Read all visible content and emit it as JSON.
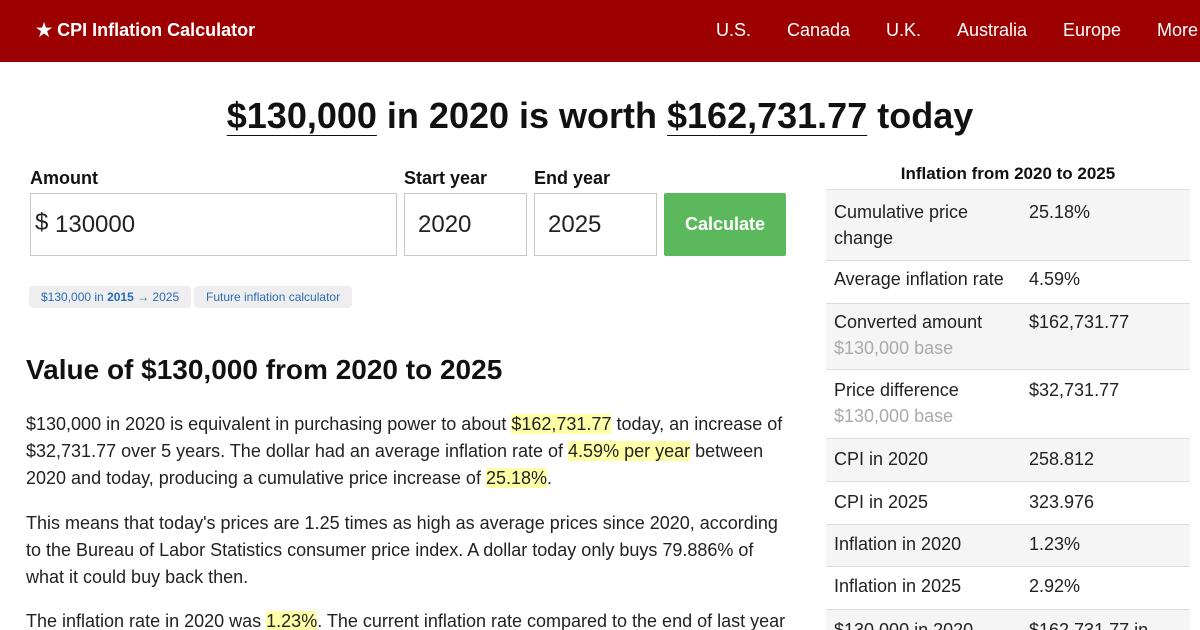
{
  "header": {
    "brand": "★ CPI Inflation Calculator",
    "nav": [
      "U.S.",
      "Canada",
      "U.K.",
      "Australia",
      "Europe",
      "More"
    ],
    "bg_color": "#9c0000"
  },
  "headline": {
    "amount": "$130,000",
    "mid": " in 2020 is worth ",
    "value": "$162,731.77",
    "end": " today"
  },
  "form": {
    "amount_label": "Amount",
    "currency_symbol": "$",
    "amount_value": "130000",
    "start_label": "Start year",
    "start_value": "2020",
    "end_label": "End year",
    "end_value": "2025",
    "calculate_label": "Calculate",
    "button_color": "#5cb85c"
  },
  "links": {
    "pill1_pre": "$130,000 in ",
    "pill1_year": "2015",
    "pill1_post": " → 2025",
    "pill2": "Future inflation calculator",
    "link_color": "#2a6db5"
  },
  "article": {
    "heading": "Value of $130,000 from 2020 to 2025",
    "p1": {
      "t1": "$130,000 in 2020 is equivalent in purchasing power to about ",
      "h1": "$162,731.77",
      "t2": " today, an increase of $32,731.77 over 5 years. The dollar had an average inflation rate of ",
      "h2": "4.59% per year",
      "t3": " between 2020 and today, producing a cumulative price increase of ",
      "h3": "25.18%",
      "t4": "."
    },
    "p2": "This means that today's prices are 1.25 times as high as average prices since 2020, according to the Bureau of Labor Statistics consumer price index. A dollar today only buys 79.886% of what it could buy back then.",
    "p3": {
      "t1": "The inflation rate in 2020 was ",
      "h1": "1.23%",
      "t2": ". The current inflation rate compared to the end of last year"
    },
    "highlight_color": "#ffffa8"
  },
  "sidebar": {
    "title": "Inflation from 2020 to 2025",
    "rows": [
      {
        "label": "Cumulative price change",
        "value": "25.18%",
        "sub": ""
      },
      {
        "label": "Average inflation rate",
        "value": "4.59%",
        "sub": ""
      },
      {
        "label": "Converted amount",
        "value": "$162,731.77",
        "sub": "$130,000 base"
      },
      {
        "label": "Price difference",
        "value": "$32,731.77",
        "sub": "$130,000 base"
      },
      {
        "label": "CPI in 2020",
        "value": "258.812",
        "sub": ""
      },
      {
        "label": "CPI in 2025",
        "value": "323.976",
        "sub": ""
      },
      {
        "label": "Inflation in 2020",
        "value": "1.23%",
        "sub": ""
      },
      {
        "label": "Inflation in 2025",
        "value": "2.92%",
        "sub": ""
      },
      {
        "label": "$130,000 in 2020",
        "value": "$162,731.77 in",
        "sub": ""
      }
    ]
  }
}
